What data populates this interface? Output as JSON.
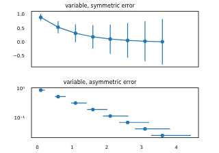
{
  "chart_data": [
    {
      "type": "line",
      "title": "variable, symmetric error",
      "x": [
        0.1,
        0.6,
        1.1,
        1.6,
        2.1,
        2.6,
        3.1,
        3.6
      ],
      "values": [
        0.905,
        0.549,
        0.333,
        0.202,
        0.122,
        0.074,
        0.045,
        0.027
      ],
      "yerr": [
        0.12,
        0.22,
        0.32,
        0.42,
        0.52,
        0.62,
        0.72,
        0.82
      ],
      "color": "#1f77b4",
      "marker": "circle",
      "line_style": "solid",
      "xlim": [
        -0.166,
        4.638
      ],
      "xticks": [
        0,
        1,
        2,
        3,
        4
      ],
      "ylim": [
        -0.88,
        1.12
      ],
      "yticks": [
        {
          "value": -0.5,
          "label": "−0.5"
        },
        {
          "value": 0,
          "label": "0.0"
        },
        0.5,
        {
          "value": 1,
          "label": "1.0"
        }
      ],
      "grid": false,
      "tick_labels": "y"
    },
    {
      "type": "line",
      "title": "variable, asymmetric error",
      "x": [
        0.1,
        0.6,
        1.1,
        1.6,
        2.1,
        2.6,
        3.1,
        3.6
      ],
      "values": [
        0.905,
        0.549,
        0.333,
        0.202,
        0.122,
        0.074,
        0.045,
        0.027
      ],
      "xerr_lower": [
        0.048,
        0.088,
        0.128,
        0.168,
        0.208,
        0.248,
        0.288,
        0.328
      ],
      "xerr_upper": [
        0.12,
        0.22,
        0.32,
        0.42,
        0.52,
        0.62,
        0.72,
        0.82
      ],
      "color": "#1f77b4",
      "marker": "circle",
      "line_style": "none",
      "xlim": [
        -0.166,
        4.638
      ],
      "xticks": [
        0,
        1,
        2,
        3,
        4
      ],
      "ylim": [
        0.0227,
        1.08
      ],
      "yticks": [
        {
          "value": 0.1,
          "label": "10⁻¹"
        },
        {
          "value": 1,
          "label": "10⁰"
        }
      ],
      "log": "y",
      "grid": false
    }
  ]
}
